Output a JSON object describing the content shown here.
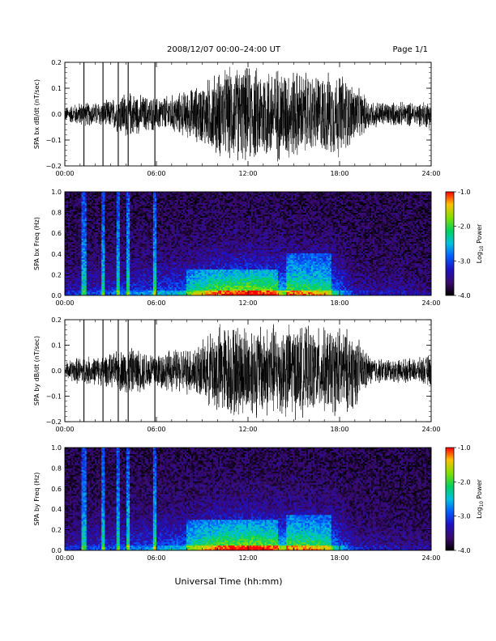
{
  "header": {
    "title": "2008/12/07  00:00–24:00 UT",
    "page": "Page 1/1"
  },
  "chart_data": [
    {
      "type": "line",
      "name": "SPA bx dB/dt",
      "ylabel": "SPA bx dB/dt (nT/sec)",
      "ylim": [
        -0.2,
        0.2
      ],
      "yticks": [
        "0.2",
        "0.1",
        "0.0",
        "−0.1",
        "−0.2"
      ],
      "xlim": [
        "00:00",
        "24:00"
      ],
      "xticks": [
        "00:00",
        "06:00",
        "12:00",
        "18:00",
        "24:00"
      ],
      "amplitude_envelope_hours": [
        0,
        1,
        2,
        3,
        4,
        5,
        6,
        7,
        8,
        9,
        10,
        11,
        12,
        13,
        14,
        15,
        16,
        17,
        18,
        19,
        20,
        21,
        22,
        23,
        24
      ],
      "amplitude_envelope": [
        0.03,
        0.05,
        0.05,
        0.06,
        0.1,
        0.08,
        0.07,
        0.08,
        0.1,
        0.13,
        0.18,
        0.2,
        0.2,
        0.2,
        0.2,
        0.19,
        0.17,
        0.17,
        0.18,
        0.12,
        0.06,
        0.05,
        0.05,
        0.05,
        0.06
      ],
      "spikes_hours": [
        1.25,
        2.5,
        3.5,
        4.15,
        5.9
      ]
    },
    {
      "type": "heatmap",
      "name": "SPA bx Freq",
      "ylabel": "SPA bx Freq (Hz)",
      "ylim": [
        0.0,
        1.0
      ],
      "yticks": [
        "1.0",
        "0.8",
        "0.6",
        "0.4",
        "0.2",
        "0.0"
      ],
      "xlim": [
        "00:00",
        "24:00"
      ],
      "xticks": [
        "00:00",
        "06:00",
        "12:00",
        "18:00",
        "24:00"
      ],
      "colorbar": {
        "label": "Log10 Power",
        "label_main": "Log",
        "label_sub": "10",
        "label_tail": "Power",
        "range": [
          -4.0,
          -1.0
        ],
        "ticks": [
          "-1.0",
          "-2.0",
          "-3.0",
          "-4.0"
        ]
      },
      "bands": [
        {
          "hours": [
            14.5,
            17.5
          ],
          "freq_top": 0.4,
          "level": -3.0
        },
        {
          "hours": [
            8.0,
            14.0
          ],
          "freq_top": 0.25,
          "level": -3.0
        }
      ]
    },
    {
      "type": "line",
      "name": "SPA by dB/dt",
      "ylabel": "SPA by dB/dt (nT/sec)",
      "ylim": [
        -0.2,
        0.2
      ],
      "yticks": [
        "0.2",
        "0.1",
        "0.0",
        "−0.1",
        "−0.2"
      ],
      "xlim": [
        "00:00",
        "24:00"
      ],
      "xticks": [
        "00:00",
        "06:00",
        "12:00",
        "18:00",
        "24:00"
      ],
      "amplitude_envelope_hours": [
        0,
        1,
        2,
        3,
        4,
        5,
        6,
        7,
        8,
        9,
        10,
        11,
        12,
        13,
        14,
        15,
        16,
        17,
        18,
        19,
        20,
        21,
        22,
        23,
        24
      ],
      "amplitude_envelope": [
        0.04,
        0.06,
        0.06,
        0.07,
        0.1,
        0.09,
        0.08,
        0.09,
        0.1,
        0.12,
        0.2,
        0.2,
        0.2,
        0.2,
        0.2,
        0.2,
        0.18,
        0.18,
        0.19,
        0.16,
        0.06,
        0.05,
        0.05,
        0.05,
        0.07
      ],
      "spikes_hours": [
        1.25,
        2.5,
        3.5,
        4.15,
        5.9
      ]
    },
    {
      "type": "heatmap",
      "name": "SPA by Freq",
      "ylabel": "SPA by Freq (Hz)",
      "ylim": [
        0.0,
        1.0
      ],
      "yticks": [
        "1.0",
        "0.8",
        "0.6",
        "0.4",
        "0.2",
        "0.0"
      ],
      "xlim": [
        "00:00",
        "24:00"
      ],
      "xticks": [
        "00:00",
        "06:00",
        "12:00",
        "18:00",
        "24:00"
      ],
      "colorbar": {
        "label": "Log10 Power",
        "label_main": "Log",
        "label_sub": "10",
        "label_tail": "Power",
        "range": [
          -4.0,
          -1.0
        ],
        "ticks": [
          "-1.0",
          "-2.0",
          "-3.0",
          "-4.0"
        ]
      },
      "bands": [
        {
          "hours": [
            14.5,
            17.5
          ],
          "freq_top": 0.35,
          "level": -3.0
        },
        {
          "hours": [
            8.0,
            14.0
          ],
          "freq_top": 0.3,
          "level": -3.0
        }
      ]
    }
  ],
  "footer": {
    "xlabel": "Universal Time (hh:mm)"
  }
}
